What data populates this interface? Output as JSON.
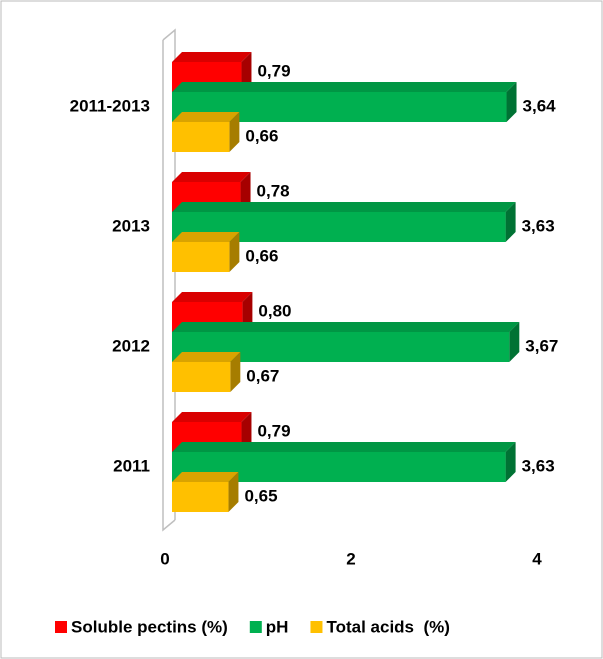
{
  "chart_data": {
    "type": "bar3d_horizontal",
    "categories": [
      "2011",
      "2012",
      "2013",
      "2011-2013"
    ],
    "series": [
      {
        "name": "Soluble pectins (%)",
        "color": "#ff0000",
        "values": [
          0.79,
          0.8,
          0.78,
          0.79
        ],
        "value_labels": [
          "0,79",
          "0,80",
          "0,78",
          "0,79"
        ]
      },
      {
        "name": "pH",
        "color": "#00b050",
        "values": [
          3.63,
          3.67,
          3.63,
          3.64
        ],
        "value_labels": [
          "3,63",
          "3,67",
          "3,63",
          "3,64"
        ]
      },
      {
        "name": "Total acids  (%)",
        "color": "#ffc000",
        "values": [
          0.65,
          0.67,
          0.66,
          0.66
        ],
        "value_labels": [
          "0,65",
          "0,67",
          "0,66",
          "0,66"
        ]
      }
    ],
    "xlim": [
      0,
      4
    ],
    "xticks": [
      0,
      2,
      4
    ],
    "legend": "bottom"
  }
}
